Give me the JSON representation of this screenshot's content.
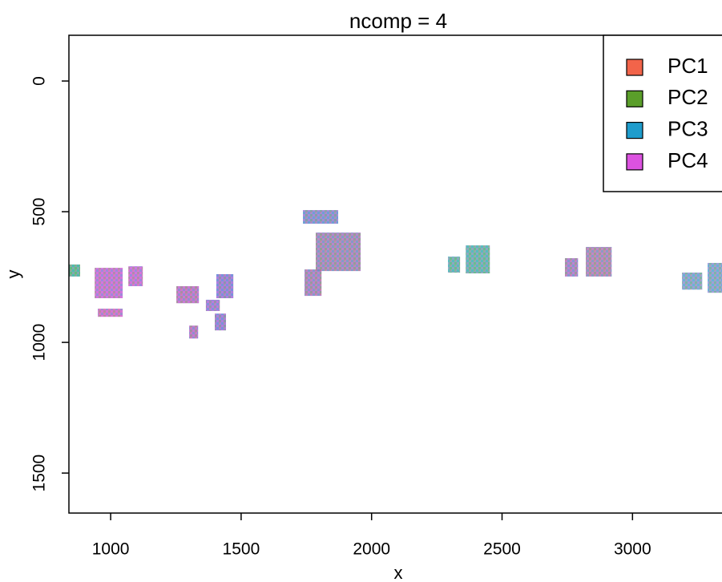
{
  "chart_data": {
    "type": "tile",
    "title": "ncomp = 4",
    "x_label": "x",
    "y_label": "y",
    "xlim": [
      840,
      3343
    ],
    "xticks": [
      1000,
      1500,
      2000,
      2500,
      3000
    ],
    "ylim": [
      1653,
      -175
    ],
    "yticks": [
      0,
      500,
      1000,
      1500
    ],
    "legend_position": "top-right",
    "series": [
      {
        "name": "PC1",
        "color": "#f2644a"
      },
      {
        "name": "PC2",
        "color": "#5a9e2a"
      },
      {
        "name": "PC3",
        "color": "#1e9ccc"
      },
      {
        "name": "PC4",
        "color": "#dc52e0"
      }
    ],
    "patches": [
      {
        "x": [
          840,
          883
        ],
        "y": [
          702,
          748
        ],
        "color": "#3fbf8a"
      },
      {
        "x": [
          939,
          1046
        ],
        "y": [
          715,
          831
        ],
        "color": "#c86ad8"
      },
      {
        "x": [
          951,
          1046
        ],
        "y": [
          871,
          902
        ],
        "color": "#d06cc8"
      },
      {
        "x": [
          1068,
          1123
        ],
        "y": [
          709,
          785
        ],
        "color": "#c86ad8"
      },
      {
        "x": [
          1252,
          1338
        ],
        "y": [
          785,
          850
        ],
        "color": "#b970c8"
      },
      {
        "x": [
          1301,
          1335
        ],
        "y": [
          936,
          985
        ],
        "color": "#b070c8"
      },
      {
        "x": [
          1365,
          1418
        ],
        "y": [
          837,
          880
        ],
        "color": "#9a78d8"
      },
      {
        "x": [
          1405,
          1470
        ],
        "y": [
          739,
          831
        ],
        "color": "#8a7ad8"
      },
      {
        "x": [
          1399,
          1442
        ],
        "y": [
          890,
          954
        ],
        "color": "#8a7ad8"
      },
      {
        "x": [
          1737,
          1872
        ],
        "y": [
          494,
          546
        ],
        "color": "#7a90d0"
      },
      {
        "x": [
          1743,
          1808
        ],
        "y": [
          721,
          822
        ],
        "color": "#a080c0"
      },
      {
        "x": [
          1786,
          1958
        ],
        "y": [
          580,
          727
        ],
        "color": "#9a88b8"
      },
      {
        "x": [
          2293,
          2339
        ],
        "y": [
          672,
          733
        ],
        "color": "#50c0a8"
      },
      {
        "x": [
          2361,
          2453
        ],
        "y": [
          629,
          736
        ],
        "color": "#50c0a8"
      },
      {
        "x": [
          2741,
          2791
        ],
        "y": [
          678,
          748
        ],
        "color": "#a080c8"
      },
      {
        "x": [
          2821,
          2920
        ],
        "y": [
          635,
          748
        ],
        "color": "#a888b0"
      },
      {
        "x": [
          3190,
          3267
        ],
        "y": [
          733,
          798
        ],
        "color": "#70b0d0"
      },
      {
        "x": [
          3288,
          3343
        ],
        "y": [
          696,
          810
        ],
        "color": "#70b0d0"
      }
    ]
  }
}
